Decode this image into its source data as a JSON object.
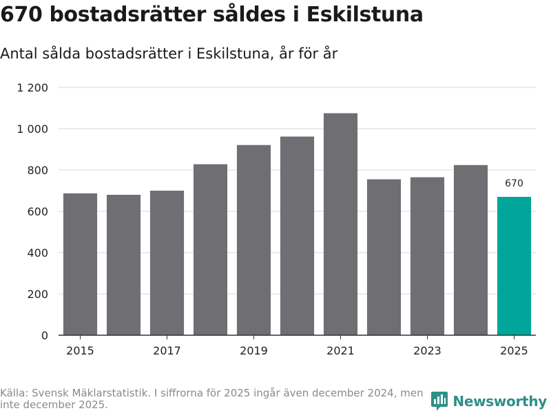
{
  "header": {
    "title": "670 bostadsrätter såldes i Eskilstuna",
    "subtitle": "Antal sålda bostadsrätter i Eskilstuna, år för år"
  },
  "footer": {
    "source": "Källa: Svensk Mäklarstatistik. I siffrorna för 2025 ingår även december 2024, men inte december 2025.",
    "brand": "Newsworthy"
  },
  "colors": {
    "bar": "#6f6e73",
    "highlight": "#00a69a",
    "grid": "#d9d9d9",
    "axis": "#333333",
    "brand": "#2f8f88"
  },
  "chart_data": {
    "type": "bar",
    "title": "670 bostadsrätter såldes i Eskilstuna",
    "subtitle": "Antal sålda bostadsrätter i Eskilstuna, år för år",
    "categories": [
      "2015",
      "2016",
      "2017",
      "2018",
      "2019",
      "2020",
      "2021",
      "2022",
      "2023",
      "2024",
      "2025"
    ],
    "values": [
      687,
      680,
      700,
      828,
      921,
      962,
      1075,
      755,
      765,
      824,
      670
    ],
    "x_tick_labels": [
      "2015",
      "2017",
      "2019",
      "2021",
      "2023",
      "2025"
    ],
    "y_ticks": [
      0,
      200,
      400,
      600,
      800,
      1000,
      1200
    ],
    "y_tick_labels": [
      "0",
      "200",
      "400",
      "600",
      "800",
      "1 000",
      "1 200"
    ],
    "ylim": [
      0,
      1200
    ],
    "highlight_index": 10,
    "data_labels": [
      {
        "index": 10,
        "text": "670"
      }
    ],
    "xlabel": "",
    "ylabel": "",
    "grid": true
  }
}
